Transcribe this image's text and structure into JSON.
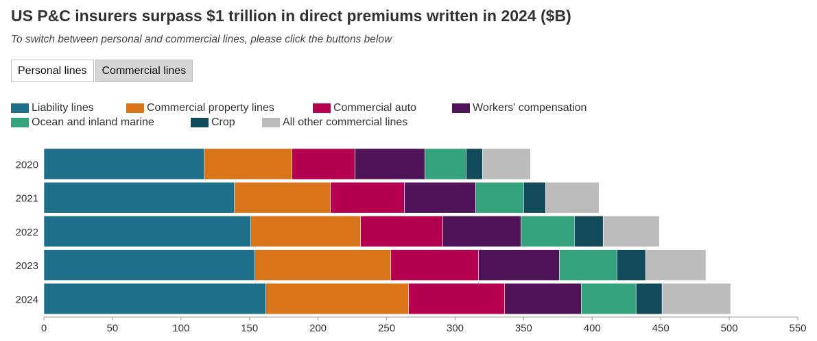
{
  "header": {
    "title": "US P&C insurers surpass $1 trillion in direct premiums written in 2024 ($B)",
    "subtitle": "To switch between personal and commercial lines, please click the buttons below"
  },
  "buttons": [
    {
      "label": "Personal lines",
      "active": false
    },
    {
      "label": "Commercial lines",
      "active": true
    }
  ],
  "chart_data": {
    "type": "bar",
    "orientation": "horizontal",
    "stacked": true,
    "categories": [
      "2020",
      "2021",
      "2022",
      "2023",
      "2024"
    ],
    "xlim": [
      0,
      550
    ],
    "xticks": [
      0,
      50,
      100,
      150,
      200,
      250,
      300,
      350,
      400,
      450,
      500,
      550
    ],
    "legend_position": "top-left",
    "series": [
      {
        "name": "Liability lines",
        "color": "#1f6f8b",
        "values": [
          117,
          139,
          151,
          154,
          162
        ]
      },
      {
        "name": "Commercial property lines",
        "color": "#d8751b",
        "values": [
          64,
          70,
          80,
          99,
          104
        ]
      },
      {
        "name": "Commercial auto",
        "color": "#b5004f",
        "values": [
          46,
          54,
          60,
          64,
          70
        ]
      },
      {
        "name": "Workers' compensation",
        "color": "#4f1457",
        "values": [
          51,
          52,
          57,
          59,
          56
        ]
      },
      {
        "name": "Ocean and inland marine",
        "color": "#33a27d",
        "values": [
          30,
          35,
          39,
          42,
          40
        ]
      },
      {
        "name": "Crop",
        "color": "#124a5a",
        "values": [
          12,
          16,
          21,
          21,
          19
        ]
      },
      {
        "name": "All other commercial lines",
        "color": "#bcbcbd",
        "values": [
          35,
          39,
          41,
          44,
          50
        ]
      }
    ]
  }
}
